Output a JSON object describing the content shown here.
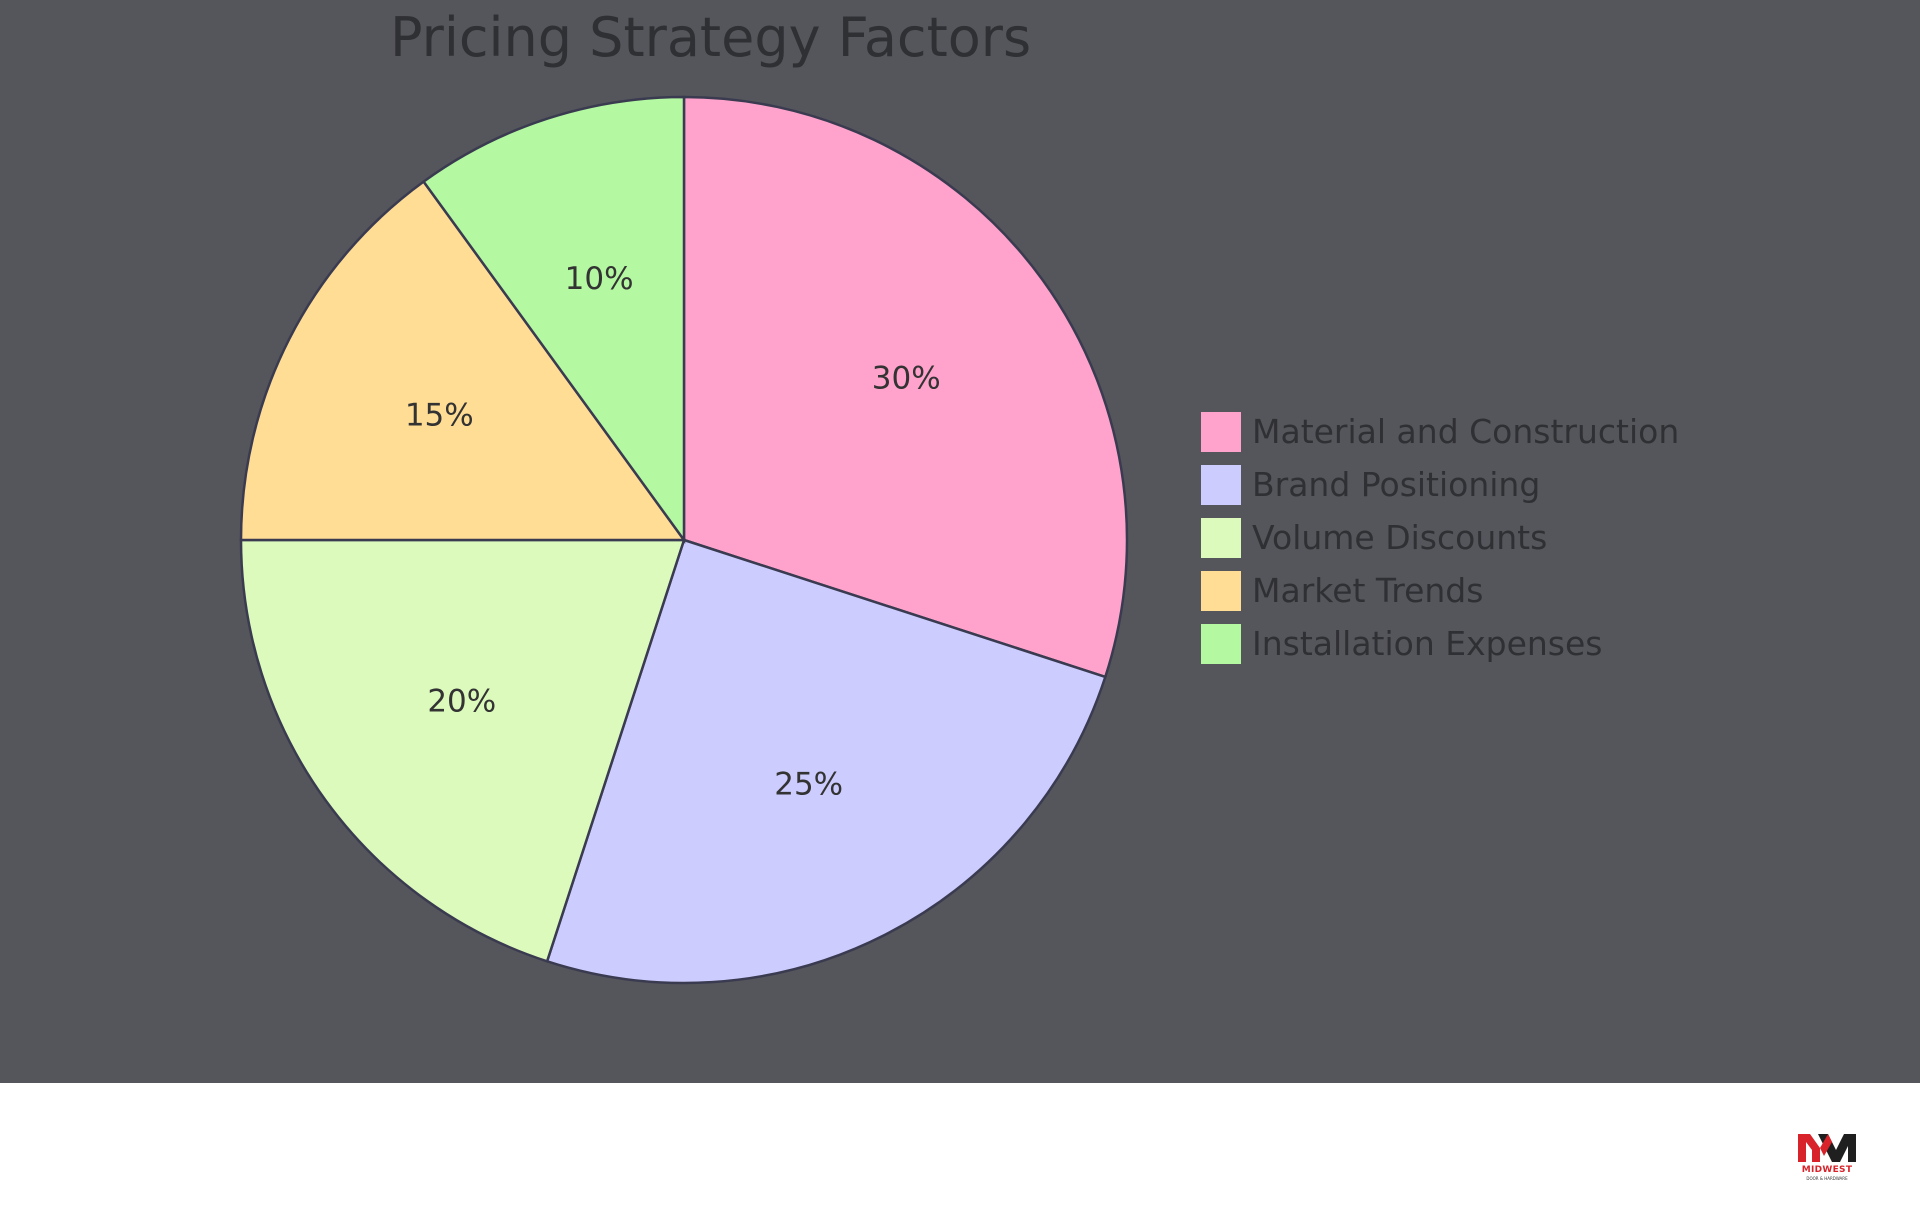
{
  "chart_data": {
    "type": "pie",
    "title": "Pricing Strategy Factors",
    "start_angle": "12 o'clock, clockwise",
    "legend_position": "right",
    "slices": [
      {
        "label": "Material and Construction",
        "value": 30,
        "value_label": "30%",
        "color": "#ffa3cc"
      },
      {
        "label": "Brand Positioning",
        "value": 25,
        "value_label": "25%",
        "color": "#ccccff"
      },
      {
        "label": "Volume Discounts",
        "value": 20,
        "value_label": "20%",
        "color": "#dcfabc"
      },
      {
        "label": "Market Trends",
        "value": 15,
        "value_label": "15%",
        "color": "#ffdd95"
      },
      {
        "label": "Installation Expenses",
        "value": 10,
        "value_label": "10%",
        "color": "#b4f8a2"
      }
    ]
  },
  "colors": {
    "panel_background": "#55565b",
    "slice_stroke": "#3a3b50",
    "text": "#2f3034",
    "brand_red": "#d8232a"
  },
  "branding": {
    "logo_icon": "midwest-mw-logo-icon",
    "name": "MIDWEST",
    "subtitle": "DOOR & HARDWARE"
  }
}
